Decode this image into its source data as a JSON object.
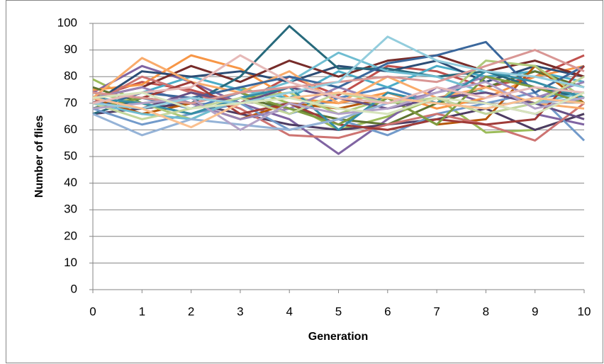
{
  "chart_data": {
    "type": "line",
    "y_label": "Number of flies",
    "x_label": "Generation",
    "x": [
      0,
      1,
      2,
      3,
      4,
      5,
      6,
      7,
      8,
      9,
      10
    ],
    "xlim": [
      0,
      10
    ],
    "xticks": [
      0,
      1,
      2,
      3,
      4,
      5,
      6,
      7,
      8,
      9,
      10
    ],
    "ylim": [
      0,
      100
    ],
    "yticks": [
      0,
      10,
      20,
      30,
      40,
      50,
      60,
      70,
      80,
      90,
      100
    ],
    "grid": true,
    "series": [
      {
        "color": "#4F81BD",
        "values": [
          70,
          72,
          68,
          74,
          66,
          72,
          76,
          70,
          68,
          72,
          74
        ]
      },
      {
        "color": "#C0504D",
        "values": [
          72,
          78,
          75,
          70,
          80,
          73,
          84,
          82,
          76,
          80,
          88
        ]
      },
      {
        "color": "#9BBB59",
        "values": [
          79,
          70,
          72,
          76,
          70,
          60,
          65,
          72,
          59,
          60,
          66
        ]
      },
      {
        "color": "#8064A2",
        "values": [
          74,
          84,
          78,
          70,
          64,
          51,
          64,
          76,
          70,
          66,
          62
        ]
      },
      {
        "color": "#4BACC6",
        "values": [
          68,
          74,
          80,
          75,
          72,
          82,
          76,
          84,
          80,
          82,
          78
        ]
      },
      {
        "color": "#F79646",
        "values": [
          75,
          77,
          88,
          83,
          72,
          70,
          74,
          68,
          72,
          80,
          84
        ]
      },
      {
        "color": "#2C4D75",
        "values": [
          70,
          82,
          80,
          82,
          78,
          84,
          82,
          86,
          78,
          84,
          80
        ]
      },
      {
        "color": "#772C2A",
        "values": [
          72,
          76,
          84,
          78,
          86,
          80,
          86,
          88,
          82,
          86,
          80
        ]
      },
      {
        "color": "#5F7530",
        "values": [
          76,
          70,
          66,
          72,
          68,
          64,
          62,
          70,
          76,
          82,
          76
        ]
      },
      {
        "color": "#4D3B62",
        "values": [
          66,
          68,
          70,
          66,
          62,
          60,
          62,
          64,
          68,
          60,
          66
        ]
      },
      {
        "color": "#276A7C",
        "values": [
          66,
          72,
          70,
          80,
          99,
          83,
          83,
          80,
          82,
          76,
          72
        ]
      },
      {
        "color": "#B65708",
        "values": [
          72,
          66,
          70,
          64,
          70,
          68,
          72,
          62,
          64,
          84,
          70
        ]
      },
      {
        "color": "#729ACA",
        "values": [
          68,
          62,
          66,
          70,
          60,
          64,
          58,
          66,
          70,
          74,
          56
        ]
      },
      {
        "color": "#CD7371",
        "values": [
          70,
          80,
          74,
          68,
          58,
          57,
          62,
          66,
          62,
          56,
          70
        ]
      },
      {
        "color": "#AFC97A",
        "values": [
          74,
          70,
          64,
          72,
          74,
          66,
          72,
          70,
          86,
          84,
          72
        ]
      },
      {
        "color": "#9983B5",
        "values": [
          72,
          76,
          70,
          64,
          68,
          76,
          70,
          74,
          80,
          72,
          78
        ]
      },
      {
        "color": "#6FBDD1",
        "values": [
          70,
          66,
          64,
          72,
          78,
          89,
          82,
          80,
          74,
          70,
          74
        ]
      },
      {
        "color": "#F9AB6B",
        "values": [
          72,
          87,
          78,
          74,
          82,
          70,
          80,
          72,
          76,
          70,
          68
        ]
      },
      {
        "color": "#3A679C",
        "values": [
          68,
          74,
          72,
          76,
          80,
          76,
          85,
          88,
          93,
          74,
          84
        ]
      },
      {
        "color": "#9F3B38",
        "values": [
          74,
          72,
          78,
          66,
          70,
          62,
          60,
          64,
          62,
          64,
          84
        ]
      },
      {
        "color": "#7E9C40",
        "values": [
          68,
          72,
          70,
          74,
          68,
          62,
          72,
          62,
          80,
          76,
          70
        ]
      },
      {
        "color": "#664F83",
        "values": [
          70,
          68,
          74,
          70,
          76,
          72,
          68,
          72,
          74,
          70,
          64
        ]
      },
      {
        "color": "#358EA6",
        "values": [
          72,
          70,
          66,
          72,
          76,
          60,
          74,
          70,
          82,
          78,
          72
        ]
      },
      {
        "color": "#95B3D7",
        "values": [
          66,
          58,
          64,
          62,
          60,
          64,
          70,
          72,
          66,
          70,
          72
        ]
      },
      {
        "color": "#D99694",
        "values": [
          74,
          72,
          70,
          74,
          76,
          78,
          80,
          78,
          84,
          90,
          82
        ]
      },
      {
        "color": "#C3D69B",
        "values": [
          70,
          64,
          68,
          72,
          66,
          74,
          70,
          72,
          66,
          70,
          80
        ]
      },
      {
        "color": "#B3A2C7",
        "values": [
          68,
          70,
          72,
          60,
          70,
          66,
          68,
          74,
          78,
          68,
          72
        ]
      },
      {
        "color": "#93CDDD",
        "values": [
          70,
          68,
          72,
          70,
          74,
          78,
          95,
          86,
          82,
          80,
          76
        ]
      },
      {
        "color": "#FAC090",
        "values": [
          72,
          68,
          61,
          70,
          72,
          74,
          72,
          70,
          68,
          72,
          70
        ]
      },
      {
        "color": "#E6B9B8",
        "values": [
          70,
          74,
          76,
          88,
          78,
          72,
          70,
          76,
          72,
          76,
          74
        ]
      },
      {
        "color": "#D7E4BC",
        "values": [
          72,
          74,
          68,
          70,
          72,
          68,
          66,
          72,
          70,
          66,
          74
        ]
      }
    ]
  }
}
